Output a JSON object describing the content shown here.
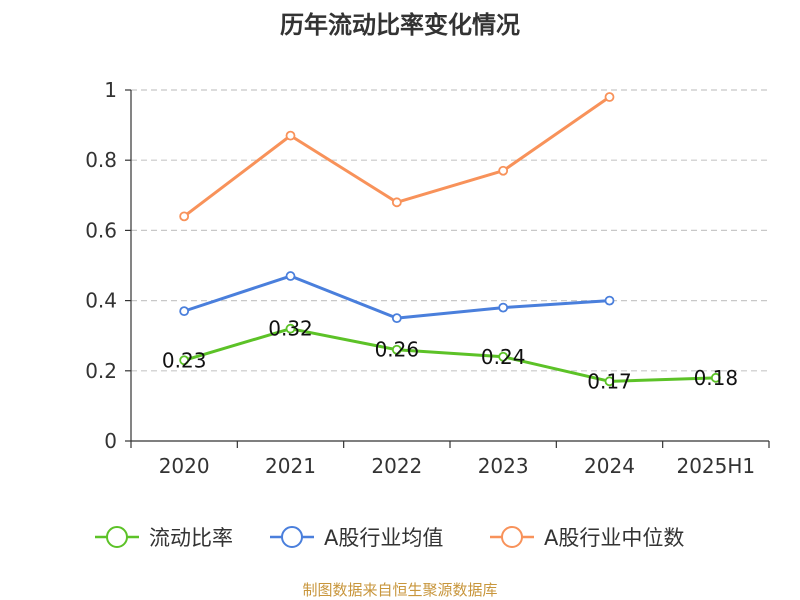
{
  "chart_data": {
    "type": "line",
    "title": "历年流动比率变化情况",
    "categories": [
      "2020",
      "2021",
      "2022",
      "2023",
      "2024",
      "2025H1"
    ],
    "ylim": [
      0,
      1
    ],
    "yticks": [
      0,
      0.2,
      0.4,
      0.6,
      0.8,
      1
    ],
    "ytick_labels": [
      "0",
      "0.2",
      "0.4",
      "0.6",
      "0.8",
      "1"
    ],
    "grid": true,
    "legend_position": "bottom",
    "series": [
      {
        "name": "流动比率",
        "color": "#5cc227",
        "values": [
          0.23,
          0.32,
          0.26,
          0.24,
          0.17,
          0.18
        ],
        "labels": [
          "0.23",
          "0.32",
          "0.26",
          "0.24",
          "0.17",
          "0.18"
        ]
      },
      {
        "name": "A股行业均值",
        "color": "#4a7fdc",
        "values": [
          0.37,
          0.47,
          0.35,
          0.38,
          0.4,
          null
        ],
        "labels": []
      },
      {
        "name": "A股行业中位数",
        "color": "#f8925a",
        "values": [
          0.64,
          0.87,
          0.68,
          0.77,
          0.98,
          null
        ],
        "labels": []
      }
    ]
  },
  "source_text": "制图数据来自恒生聚源数据库",
  "source_color": "#c8963c",
  "axis_color": "#333333",
  "grid_color": "#c8c8c8"
}
